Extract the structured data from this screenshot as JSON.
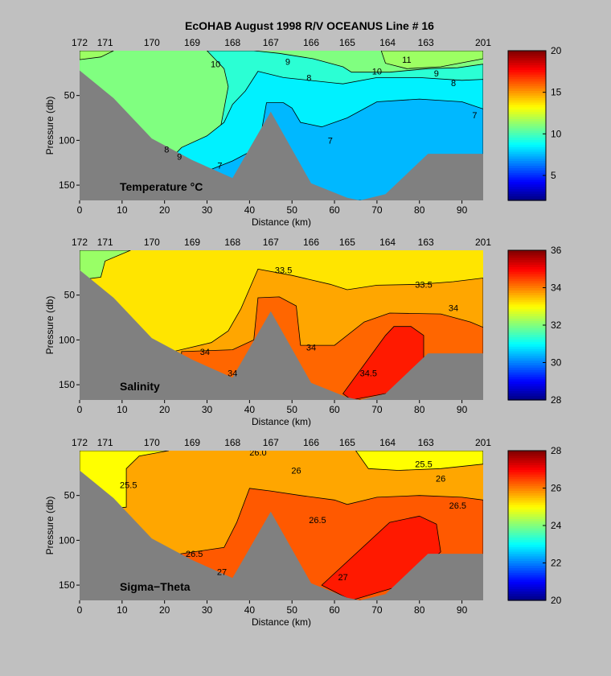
{
  "figure": {
    "title": "EcOHAB   August 1998   R/V OCEANUS   Line # 16"
  },
  "colors": {
    "background": "#c0c0c0",
    "bathymetry": "#808080",
    "colormap": "jet"
  },
  "chart_data": [
    {
      "type": "heatmap",
      "label": "Temperature °C",
      "xlabel": "Distance (km)",
      "ylabel": "Pressure (db)",
      "xlim": [
        0,
        95
      ],
      "ylim": [
        167,
        0
      ],
      "x_ticks": [
        0,
        10,
        20,
        30,
        40,
        50,
        60,
        70,
        80,
        90
      ],
      "y_ticks": [
        50,
        100,
        150
      ],
      "stations": [
        {
          "name": "172",
          "km": 0
        },
        {
          "name": "171",
          "km": 6
        },
        {
          "name": "170",
          "km": 17
        },
        {
          "name": "169",
          "km": 26.5
        },
        {
          "name": "168",
          "km": 36
        },
        {
          "name": "167",
          "km": 45
        },
        {
          "name": "166",
          "km": 54.5
        },
        {
          "name": "165",
          "km": 63
        },
        {
          "name": "164",
          "km": 72.5
        },
        {
          "name": "163",
          "km": 81.5
        },
        {
          "name": "201",
          "km": 95
        }
      ],
      "colorbar": {
        "min": 2,
        "max": 20,
        "ticks": [
          5,
          10,
          15,
          20
        ]
      },
      "contour_labels": [
        {
          "text": "10",
          "km": 32,
          "db": 15
        },
        {
          "text": "9",
          "km": 49,
          "db": 12
        },
        {
          "text": "8",
          "km": 54,
          "db": 30
        },
        {
          "text": "10",
          "km": 70,
          "db": 23
        },
        {
          "text": "11",
          "km": 77,
          "db": 10
        },
        {
          "text": "9",
          "km": 84,
          "db": 25
        },
        {
          "text": "8",
          "km": 88,
          "db": 36
        },
        {
          "text": "7",
          "km": 93,
          "db": 72
        },
        {
          "text": "7",
          "km": 59,
          "db": 100
        },
        {
          "text": "7",
          "km": 33,
          "db": 128
        },
        {
          "text": "8",
          "km": 20.5,
          "db": 110
        },
        {
          "text": "9",
          "km": 23.5,
          "db": 118
        }
      ],
      "fields": [
        {
          "value": 11,
          "poly": [
            [
              0,
              0
            ],
            [
              95,
              0
            ],
            [
              95,
              167
            ],
            [
              0,
              167
            ]
          ]
        },
        {
          "value": 11.5,
          "poly": [
            [
              0,
              0
            ],
            [
              8,
              0
            ],
            [
              5,
              7
            ],
            [
              0,
              10
            ]
          ]
        },
        {
          "value": 11.5,
          "poly": [
            [
              71,
              0
            ],
            [
              95,
              0
            ],
            [
              95,
              9
            ],
            [
              85,
              18
            ],
            [
              77,
              20
            ],
            [
              72,
              14
            ]
          ]
        },
        {
          "value": 9.5,
          "poly": [
            [
              30,
              0
            ],
            [
              41,
              0
            ],
            [
              47,
              3
            ],
            [
              55,
              9
            ],
            [
              62,
              18
            ],
            [
              64,
              24
            ],
            [
              73,
              24
            ],
            [
              82,
              20
            ],
            [
              89,
              19
            ],
            [
              95,
              15
            ],
            [
              95,
              167
            ],
            [
              30,
              167
            ],
            [
              33,
              90
            ],
            [
              35,
              40
            ],
            [
              34,
              20
            ],
            [
              32,
              10
            ]
          ]
        },
        {
          "value": 8.5,
          "poly": [
            [
              42,
              23
            ],
            [
              48,
              30
            ],
            [
              60,
              36
            ],
            [
              62,
              37
            ],
            [
              70,
              30
            ],
            [
              80,
              30
            ],
            [
              90,
              33
            ],
            [
              95,
              32
            ],
            [
              95,
              167
            ],
            [
              22,
              167
            ],
            [
              22,
              118
            ],
            [
              24,
              108
            ],
            [
              30,
              95
            ],
            [
              34,
              80
            ],
            [
              36,
              60
            ],
            [
              39,
              45
            ]
          ]
        },
        {
          "value": 7.5,
          "poly": [
            [
              44,
              58
            ],
            [
              48,
              58
            ],
            [
              50,
              64
            ],
            [
              52,
              80
            ],
            [
              57,
              85
            ],
            [
              63,
              75
            ],
            [
              70,
              57
            ],
            [
              80,
              54
            ],
            [
              90,
              57
            ],
            [
              95,
              65
            ],
            [
              95,
              167
            ],
            [
              28,
              167
            ],
            [
              28,
              138
            ],
            [
              36,
              123
            ],
            [
              42,
              108
            ],
            [
              43,
              85
            ]
          ]
        }
      ]
    },
    {
      "type": "heatmap",
      "label": "Salinity",
      "xlabel": "Distance (km)",
      "ylabel": "Pressure (db)",
      "xlim": [
        0,
        95
      ],
      "ylim": [
        167,
        0
      ],
      "x_ticks": [
        0,
        10,
        20,
        30,
        40,
        50,
        60,
        70,
        80,
        90
      ],
      "y_ticks": [
        50,
        100,
        150
      ],
      "stations": [
        {
          "name": "172",
          "km": 0
        },
        {
          "name": "171",
          "km": 6
        },
        {
          "name": "170",
          "km": 17
        },
        {
          "name": "169",
          "km": 26.5
        },
        {
          "name": "168",
          "km": 36
        },
        {
          "name": "167",
          "km": 45
        },
        {
          "name": "166",
          "km": 54.5
        },
        {
          "name": "165",
          "km": 63
        },
        {
          "name": "164",
          "km": 72.5
        },
        {
          "name": "163",
          "km": 81.5
        },
        {
          "name": "201",
          "km": 95
        }
      ],
      "colorbar": {
        "min": 28,
        "max": 36,
        "ticks": [
          28,
          30,
          32,
          34,
          36
        ]
      },
      "contour_labels": [
        {
          "text": "33.5",
          "km": 48,
          "db": 22
        },
        {
          "text": "33.5",
          "km": 81,
          "db": 38
        },
        {
          "text": "34",
          "km": 88,
          "db": 64
        },
        {
          "text": "34",
          "km": 29.5,
          "db": 113
        },
        {
          "text": "34",
          "km": 54.5,
          "db": 108
        },
        {
          "text": "34",
          "km": 36,
          "db": 137
        },
        {
          "text": "34.5",
          "km": 68,
          "db": 137
        }
      ],
      "fields": [
        {
          "value": 33.2,
          "poly": [
            [
              0,
              0
            ],
            [
              95,
              0
            ],
            [
              95,
              167
            ],
            [
              0,
              167
            ]
          ]
        },
        {
          "value": 32.2,
          "poly": [
            [
              0,
              0
            ],
            [
              12,
              0
            ],
            [
              6,
              12
            ],
            [
              5,
              30
            ],
            [
              0,
              33
            ]
          ]
        },
        {
          "value": 33.7,
          "poly": [
            [
              42,
              21
            ],
            [
              50,
              28
            ],
            [
              59,
              38
            ],
            [
              63,
              44
            ],
            [
              70,
              39
            ],
            [
              80,
              38
            ],
            [
              88,
              35
            ],
            [
              95,
              31
            ],
            [
              95,
              167
            ],
            [
              22,
              167
            ],
            [
              22,
              113
            ],
            [
              31,
              103
            ],
            [
              35,
              90
            ],
            [
              38,
              65
            ]
          ]
        },
        {
          "value": 34.2,
          "poly": [
            [
              42,
              53
            ],
            [
              47,
              52
            ],
            [
              51,
              62
            ],
            [
              52,
              106
            ],
            [
              60,
              106
            ],
            [
              67,
              80
            ],
            [
              73,
              70
            ],
            [
              85,
              71
            ],
            [
              92,
              80
            ],
            [
              95,
              86
            ],
            [
              95,
              167
            ],
            [
              24,
              167
            ],
            [
              24,
              113
            ],
            [
              36,
              111
            ],
            [
              41,
              100
            ]
          ]
        },
        {
          "value": 34.8,
          "poly": [
            [
              72,
              95
            ],
            [
              74,
              85
            ],
            [
              78,
              85
            ],
            [
              81,
              95
            ],
            [
              81,
              130
            ],
            [
              73,
              159
            ],
            [
              64,
              167
            ],
            [
              62,
              160
            ]
          ]
        }
      ]
    },
    {
      "type": "heatmap",
      "label": "Sigma−Theta",
      "xlabel": "Distance (km)",
      "ylabel": "Pressure (db)",
      "xlim": [
        0,
        95
      ],
      "ylim": [
        167,
        0
      ],
      "x_ticks": [
        0,
        10,
        20,
        30,
        40,
        50,
        60,
        70,
        80,
        90
      ],
      "y_ticks": [
        50,
        100,
        150
      ],
      "stations": [
        {
          "name": "172",
          "km": 0
        },
        {
          "name": "171",
          "km": 6
        },
        {
          "name": "170",
          "km": 17
        },
        {
          "name": "169",
          "km": 26.5
        },
        {
          "name": "168",
          "km": 36
        },
        {
          "name": "167",
          "km": 45
        },
        {
          "name": "166",
          "km": 54.5
        },
        {
          "name": "165",
          "km": 63
        },
        {
          "name": "164",
          "km": 72.5
        },
        {
          "name": "163",
          "km": 81.5
        },
        {
          "name": "201",
          "km": 95
        }
      ],
      "colorbar": {
        "min": 20,
        "max": 28,
        "ticks": [
          20,
          22,
          24,
          26,
          28
        ]
      },
      "contour_labels": [
        {
          "text": "25.5",
          "km": 11.5,
          "db": 38
        },
        {
          "text": "26.0",
          "km": 42,
          "db": 2
        },
        {
          "text": "26",
          "km": 51,
          "db": 22
        },
        {
          "text": "25.5",
          "km": 81,
          "db": 15
        },
        {
          "text": "26",
          "km": 85,
          "db": 31
        },
        {
          "text": "26.5",
          "km": 89,
          "db": 61
        },
        {
          "text": "26.5",
          "km": 56,
          "db": 77
        },
        {
          "text": "26.5",
          "km": 27,
          "db": 115
        },
        {
          "text": "27",
          "km": 33.5,
          "db": 135
        },
        {
          "text": "27",
          "km": 62,
          "db": 141
        }
      ],
      "fields": [
        {
          "value": 25.7,
          "poly": [
            [
              0,
              0
            ],
            [
              95,
              0
            ],
            [
              95,
              167
            ],
            [
              0,
              167
            ]
          ]
        },
        {
          "value": 25.0,
          "poly": [
            [
              0,
              0
            ],
            [
              21,
              0
            ],
            [
              14,
              6
            ],
            [
              11,
              20
            ],
            [
              11,
              63
            ],
            [
              0,
              68
            ]
          ]
        },
        {
          "value": 25.0,
          "poly": [
            [
              65,
              0
            ],
            [
              95,
              0
            ],
            [
              95,
              15
            ],
            [
              85,
              20
            ],
            [
              75,
              22
            ],
            [
              68,
              20
            ]
          ]
        },
        {
          "value": 26.3,
          "poly": [
            [
              40,
              42
            ],
            [
              45,
              45
            ],
            [
              52,
              50
            ],
            [
              60,
              55
            ],
            [
              63,
              60
            ],
            [
              70,
              52
            ],
            [
              80,
              50
            ],
            [
              90,
              52
            ],
            [
              95,
              55
            ],
            [
              95,
              167
            ],
            [
              21,
              167
            ],
            [
              21,
              117
            ],
            [
              34,
              108
            ],
            [
              37,
              80
            ]
          ]
        },
        {
          "value": 26.8,
          "poly": [
            [
              73,
              80
            ],
            [
              80,
              73
            ],
            [
              84,
              82
            ],
            [
              85,
              113
            ],
            [
              76,
              150
            ],
            [
              64,
              167
            ],
            [
              57,
              150
            ]
          ]
        }
      ]
    }
  ]
}
